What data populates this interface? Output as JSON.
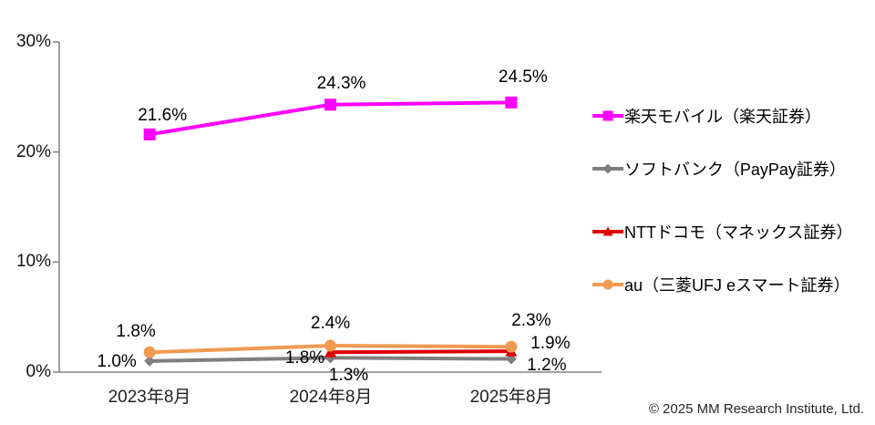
{
  "chart_data": {
    "type": "line",
    "title": "",
    "categories": [
      "2023年8月",
      "2024年8月",
      "2025年8月"
    ],
    "series": [
      {
        "name": "楽天モバイル（楽天証券）",
        "values": [
          21.6,
          24.3,
          24.5
        ],
        "labels": [
          "21.6%",
          "24.3%",
          "24.5%"
        ],
        "label_offsets": [
          [
            14,
            -20
          ],
          [
            12,
            -23
          ],
          [
            13,
            -27
          ]
        ],
        "color": "#FF00FF",
        "marker": "square"
      },
      {
        "name": "ソフトバンク（PayPay証券）",
        "values": [
          1.0,
          1.3,
          1.2
        ],
        "labels": [
          "1.0%",
          "1.3%",
          "1.2%"
        ],
        "label_offsets": [
          [
            -36,
            1
          ],
          [
            20,
            20
          ],
          [
            39,
            7
          ]
        ],
        "color": "#7F7F7F",
        "marker": "diamond"
      },
      {
        "name": "NTTドコモ（マネックス証券）",
        "values": [
          null,
          1.8,
          1.9
        ],
        "labels": [
          null,
          "1.8%",
          "1.9%"
        ],
        "label_offsets": [
          null,
          [
            -28,
            7
          ],
          [
            43,
            -8
          ]
        ],
        "color": "#E00000",
        "marker": "triangle"
      },
      {
        "name": "au（三菱UFJ eスマート証券）",
        "values": [
          1.8,
          2.4,
          2.3
        ],
        "labels": [
          "1.8%",
          "2.4%",
          "2.3%"
        ],
        "label_offsets": [
          [
            -15,
            -22
          ],
          [
            0,
            -24
          ],
          [
            22,
            -28
          ]
        ],
        "color": "#F09A52",
        "marker": "circle"
      }
    ],
    "ylim": [
      0,
      30
    ],
    "yticks": [
      "0%",
      "10%",
      "20%",
      "30%"
    ],
    "ytick_values": [
      0,
      10,
      20,
      30
    ],
    "grid": false,
    "legend_position": "right"
  },
  "footer": {
    "copyright": "© 2025 MM Research Institute, Ltd."
  }
}
